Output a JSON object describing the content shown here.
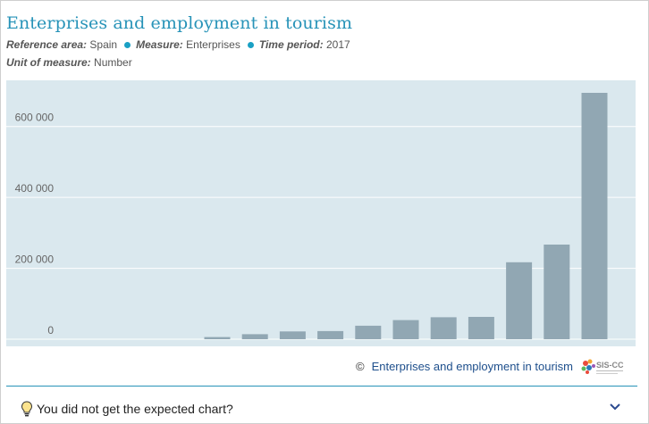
{
  "title": "Enterprises and employment in tourism",
  "meta": {
    "reference_area_label": "Reference area:",
    "reference_area_value": "Spain",
    "measure_label": "Measure:",
    "measure_value": "Enterprises",
    "time_period_label": "Time period:",
    "time_period_value": "2017",
    "unit_label": "Unit of measure:",
    "unit_value": "Number"
  },
  "source": {
    "copyright": "©",
    "link_text": "Enterprises and employment in tourism",
    "logo_icon": "sis-cc-logo"
  },
  "footer": {
    "bulb_icon": "lightbulb-icon",
    "text": "You did not get the expected chart?",
    "chevron_icon": "chevron-down-icon"
  },
  "colors": {
    "title": "#2793b8",
    "plot_background": "#dae8ee",
    "bar": "#91a7b3",
    "gridline": "#ffffff"
  },
  "chart_data": {
    "type": "bar",
    "categories": [
      "",
      "",
      "",
      "",
      "",
      "",
      "",
      "",
      "",
      "",
      "",
      "",
      "",
      "",
      "",
      ""
    ],
    "values": [
      0,
      0,
      0,
      0,
      0,
      6000,
      14000,
      22000,
      23000,
      38000,
      54000,
      62000,
      63000,
      217000,
      267000,
      695000
    ],
    "ylim": [
      0,
      700000
    ],
    "y_ticks": [
      0,
      200000,
      400000,
      600000
    ],
    "y_tick_labels": [
      "0",
      "200 000",
      "400 000",
      "600 000"
    ],
    "grid": true,
    "xlabel": "",
    "ylabel": ""
  }
}
